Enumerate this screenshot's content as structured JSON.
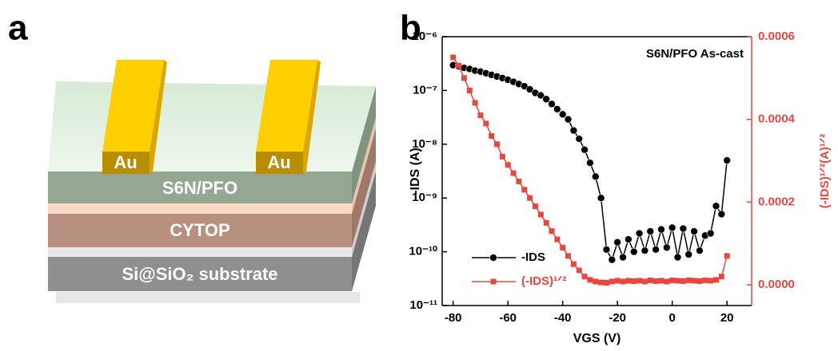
{
  "diagram": {
    "panel": "a",
    "electrodes": [
      "Au",
      "Au"
    ],
    "layers": [
      "S6N/PFO",
      "CYTOP",
      "Si@SiO₂ substrate"
    ]
  },
  "chart_data": {
    "type": "line",
    "panel": "b",
    "annotation": "S6N/PFO As-cast",
    "xlabel": "VGS (V)",
    "ylabel": "-IDS (A)",
    "y2label": "(-IDS)¹ᐟ²(A)¹ᐟ²",
    "x": [
      -80,
      -78,
      -76,
      -74,
      -72,
      -70,
      -68,
      -66,
      -64,
      -62,
      -60,
      -58,
      -56,
      -54,
      -52,
      -50,
      -48,
      -46,
      -44,
      -42,
      -40,
      -38,
      -36,
      -34,
      -32,
      -30,
      -28,
      -26,
      -24,
      -22,
      -20,
      -18,
      -16,
      -14,
      -12,
      -10,
      -8,
      -6,
      -4,
      -2,
      0,
      2,
      4,
      6,
      8,
      10,
      12,
      14,
      16,
      18,
      20
    ],
    "xlim": [
      -84,
      29
    ],
    "xticks": [
      -80,
      -60,
      -40,
      -20,
      0,
      20
    ],
    "ylog": true,
    "ylim": [
      1e-11,
      1e-06
    ],
    "yticks": [
      {
        "value": 1e-11,
        "label": "10⁻¹¹"
      },
      {
        "value": 1e-10,
        "label": "10⁻¹⁰"
      },
      {
        "value": 1e-09,
        "label": "10⁻⁹"
      },
      {
        "value": 1e-08,
        "label": "10⁻⁸"
      },
      {
        "value": 1e-07,
        "label": "10⁻⁷"
      },
      {
        "value": 1e-06,
        "label": "10⁻⁶"
      }
    ],
    "y2lim": [
      -5e-05,
      0.0006
    ],
    "y2ticks": [
      {
        "value": 0,
        "label": "0.0000"
      },
      {
        "value": 0.0002,
        "label": "0.0002"
      },
      {
        "value": 0.0004,
        "label": "0.0004"
      },
      {
        "value": 0.0006,
        "label": "0.0006"
      }
    ],
    "legend": "lower-left",
    "series": [
      {
        "name": "-IDS",
        "color": "#000000",
        "axis": "y",
        "marker": "circle",
        "values": [
          2.95e-07,
          2.82e-07,
          2.63e-07,
          2.51e-07,
          2.34e-07,
          2.24e-07,
          2.09e-07,
          1.95e-07,
          1.82e-07,
          1.7e-07,
          1.58e-07,
          1.45e-07,
          1.32e-07,
          1.2e-07,
          1.05e-07,
          9e-08,
          8.1e-08,
          6.9e-08,
          5.6e-08,
          4.5e-08,
          3.6e-08,
          2.9e-08,
          1.8e-08,
          1.26e-08,
          7.9e-09,
          4.5e-09,
          2.5e-09,
          1e-09,
          1.1e-10,
          7.1e-11,
          1.5e-10,
          7.9e-11,
          1.7e-10,
          1e-10,
          2.2e-10,
          1.05e-10,
          2.4e-10,
          1.1e-10,
          2.6e-10,
          1.2e-10,
          2.8e-10,
          7.9e-11,
          2.7e-10,
          8.9e-11,
          2.4e-10,
          1.05e-10,
          2e-10,
          2.2e-10,
          7.1e-10,
          5e-10,
          5e-09
        ]
      },
      {
        "name": "(-IDS)¹ᐟ²",
        "color": "#e8473f",
        "axis": "y2",
        "marker": "square",
        "values": [
          0.00055,
          0.00053,
          0.0005,
          0.00047,
          0.00044,
          0.00041,
          0.00039,
          0.00036,
          0.00034,
          0.00031,
          0.00029,
          0.00027,
          0.00025,
          0.00023,
          0.00021,
          0.00019,
          0.00017,
          0.00015,
          0.00013,
          0.00011,
          9e-05,
          7e-05,
          5e-05,
          3.5e-05,
          2e-05,
          1.2e-05,
          8e-06,
          6e-06,
          5e-06,
          8e-06,
          1e-05,
          8e-06,
          1e-05,
          9e-06,
          1e-05,
          8e-06,
          1.1e-05,
          9e-06,
          1e-05,
          8e-06,
          1.1e-05,
          1e-05,
          9e-06,
          1.1e-05,
          1e-05,
          9e-06,
          1.1e-05,
          1e-05,
          1.2e-05,
          2e-05,
          7e-05
        ]
      }
    ]
  }
}
